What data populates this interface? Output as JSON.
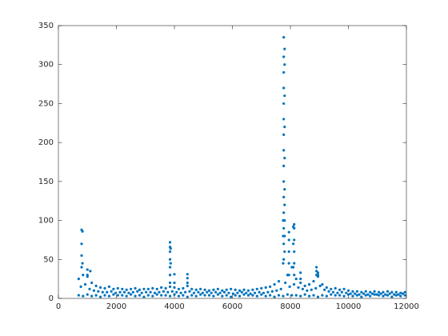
{
  "chart_data": {
    "type": "scatter",
    "color": "#0072bd",
    "xlim": [
      0,
      12000
    ],
    "ylim": [
      0,
      350
    ],
    "xticks": [
      0,
      2000,
      4000,
      6000,
      8000,
      10000,
      12000
    ],
    "yticks": [
      0,
      50,
      100,
      150,
      200,
      250,
      300,
      350
    ],
    "x": [
      700,
      850,
      1000,
      1150,
      1300,
      1450,
      1600,
      1750,
      1900,
      2050,
      2200,
      2350,
      2500,
      2650,
      2800,
      2950,
      3100,
      3250,
      3400,
      3550,
      3700,
      3850,
      4000,
      4150,
      4300,
      4450,
      4600,
      4750,
      4900,
      5050,
      5200,
      5350,
      5500,
      5650,
      5800,
      5950,
      6100,
      6250,
      6400,
      6550,
      6700,
      6850,
      7000,
      7150,
      7300,
      7450,
      7600,
      7750,
      7900,
      8050,
      8200,
      8350,
      8500,
      8650,
      8800,
      8950,
      9100,
      9250,
      9400,
      9550,
      9700,
      9850,
      10000,
      10150,
      10300,
      10450,
      10600,
      10750,
      10900,
      11050,
      11200,
      11350,
      11500,
      11650,
      11800,
      11950,
      775,
      925,
      1075,
      1225,
      1375,
      1525,
      1675,
      1825,
      1975,
      2125,
      2275,
      2425,
      2575,
      2725,
      2875,
      3025,
      3175,
      3325,
      3475,
      3625,
      3775,
      3925,
      4075,
      4225,
      4375,
      4525,
      4675,
      4825,
      4975,
      5125,
      5275,
      5425,
      5575,
      5725,
      5875,
      6025,
      6175,
      6325,
      6475,
      6625,
      6775,
      6925,
      7075,
      7225,
      7375,
      7525,
      7675,
      7825,
      7975,
      8125,
      8275,
      8425,
      8575,
      8725,
      8875,
      9025,
      9175,
      9325,
      9475,
      9625,
      9775,
      9925,
      10075,
      10225,
      10375,
      10525,
      10675,
      10825,
      10975,
      11125,
      11275,
      11425,
      11575,
      11725,
      11875,
      700,
      850,
      1000,
      1150,
      1300,
      1450,
      1600,
      1750,
      1900,
      2050,
      2200,
      2350,
      2500,
      2650,
      2800,
      2950,
      3100,
      3250,
      3400,
      3550,
      3700,
      3850,
      4000,
      4150,
      4300,
      4450,
      4600,
      4750,
      4900,
      5050,
      5200,
      5350,
      5500,
      5650,
      5800,
      5950,
      6100,
      6250,
      6400,
      6550,
      6700,
      6850,
      7000,
      7150,
      7300,
      7450,
      7600,
      7750,
      7900,
      8050,
      8200,
      8350,
      8500,
      8650,
      8800,
      8950,
      9100,
      9250,
      9400,
      9550,
      9700,
      9850,
      10000,
      10150,
      10300,
      10450,
      10600,
      10750,
      10900,
      11050,
      11200,
      11350,
      11500,
      11650,
      11800,
      11950,
      800,
      800,
      800,
      800,
      830,
      830,
      1000,
      1000,
      1100,
      3850,
      3850,
      3850,
      3850,
      3850,
      3850,
      3850,
      3870,
      3870,
      4000,
      4000,
      4450,
      4450,
      4450,
      7770,
      7770,
      7770,
      7770,
      7770,
      7770,
      7770,
      7770,
      7770,
      7770,
      7770,
      7770,
      7770,
      7770,
      7770,
      7800,
      7800,
      7800,
      7800,
      7800,
      7800,
      7800,
      7800,
      7800,
      7800,
      7750,
      7750,
      7950,
      7950,
      7950,
      7950,
      7950,
      8130,
      8130,
      8130,
      8130,
      8130,
      8130,
      8100,
      8100,
      8100,
      8350,
      8350,
      8900,
      8900,
      8900,
      8950,
      8950
    ],
    "values": [
      25,
      30,
      28,
      20,
      16,
      14,
      13,
      15,
      12,
      13,
      12,
      11,
      12,
      13,
      11,
      12,
      12,
      13,
      12,
      14,
      13,
      15,
      14,
      12,
      13,
      16,
      12,
      11,
      12,
      11,
      10,
      11,
      12,
      10,
      11,
      12,
      11,
      10,
      11,
      10,
      11,
      12,
      13,
      14,
      15,
      18,
      22,
      45,
      30,
      40,
      25,
      20,
      16,
      18,
      22,
      30,
      18,
      14,
      12,
      13,
      11,
      12,
      10,
      9,
      9,
      8,
      9,
      8,
      9,
      8,
      8,
      9,
      8,
      8,
      7,
      8,
      15,
      18,
      12,
      10,
      9,
      8,
      8,
      9,
      7,
      8,
      8,
      7,
      8,
      9,
      7,
      8,
      8,
      7,
      8,
      9,
      8,
      9,
      8,
      7,
      8,
      9,
      7,
      8,
      7,
      8,
      7,
      8,
      7,
      8,
      7,
      6,
      7,
      8,
      7,
      6,
      7,
      8,
      7,
      8,
      9,
      10,
      12,
      20,
      15,
      18,
      14,
      12,
      10,
      11,
      13,
      16,
      11,
      9,
      8,
      7,
      8,
      7,
      6,
      6,
      5,
      6,
      5,
      6,
      5,
      6,
      5,
      6,
      5,
      5,
      6,
      4,
      3,
      5,
      3,
      4,
      2,
      4,
      3,
      5,
      4,
      4,
      3,
      5,
      3,
      4,
      2,
      4,
      3,
      5,
      4,
      4,
      3,
      5,
      3,
      4,
      2,
      4,
      3,
      5,
      4,
      4,
      3,
      5,
      3,
      4,
      2,
      4,
      3,
      5,
      4,
      4,
      3,
      5,
      3,
      4,
      2,
      4,
      3,
      5,
      4,
      4,
      3,
      5,
      3,
      4,
      2,
      4,
      3,
      5,
      4,
      4,
      3,
      5,
      3,
      4,
      2,
      4,
      3,
      5,
      4,
      3,
      4,
      2,
      4,
      3,
      4,
      40,
      55,
      70,
      88,
      86,
      45,
      37,
      30,
      35,
      20,
      30,
      40,
      50,
      60,
      66,
      72,
      64,
      45,
      20,
      31,
      20,
      26,
      31,
      50,
      70,
      90,
      110,
      130,
      150,
      170,
      190,
      210,
      230,
      250,
      270,
      290,
      310,
      335,
      60,
      80,
      100,
      120,
      140,
      180,
      220,
      260,
      300,
      320,
      100,
      80,
      30,
      45,
      60,
      75,
      85,
      30,
      45,
      60,
      75,
      90,
      95,
      40,
      70,
      92,
      25,
      33,
      30,
      35,
      40,
      28,
      33
    ]
  }
}
